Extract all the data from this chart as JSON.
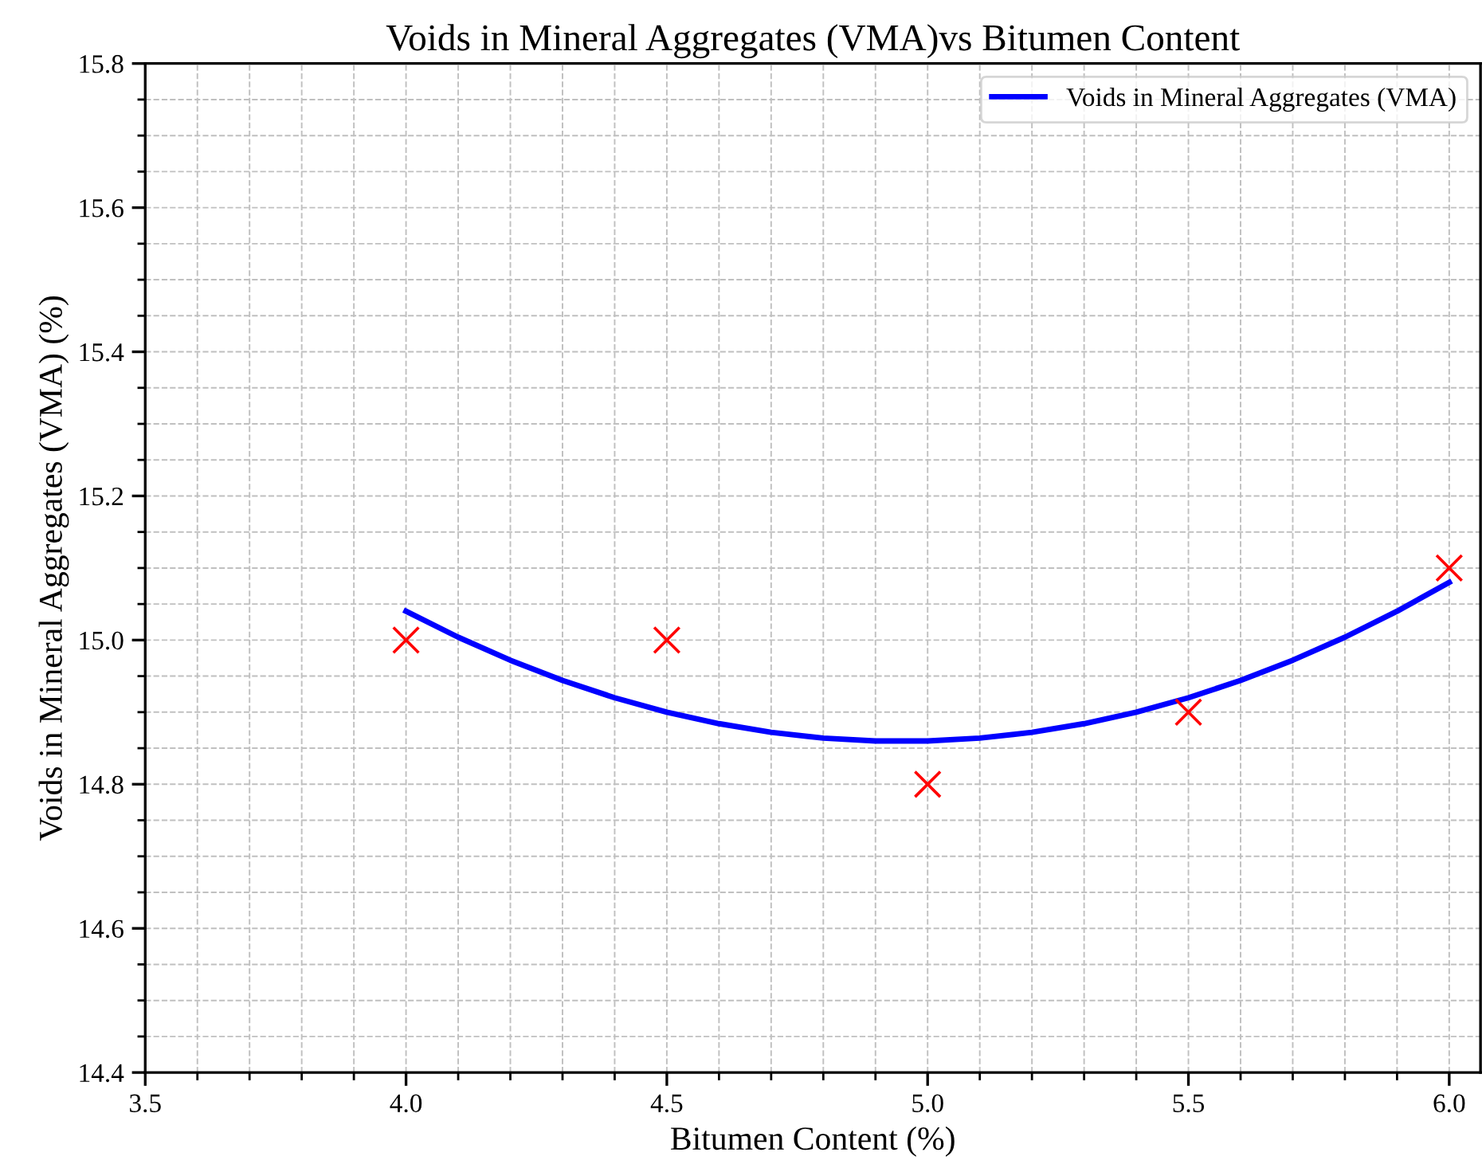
{
  "chart_data": {
    "type": "scatter",
    "title": "Voids in Mineral Aggregates (VMA)vs Bitumen Content",
    "xlabel": "Bitumen Content (%)",
    "ylabel": "Voids in Mineral Aggregates (VMA) (%)",
    "series": [
      {
        "color": "#ff0000",
        "marker": "cross",
        "x": [
          4.0,
          4.5,
          5.0,
          5.5,
          6.0
        ],
        "values": [
          15.0,
          15.0,
          14.8,
          14.9,
          15.1
        ]
      },
      {
        "type": "line",
        "name": "Voids in Mineral Aggregates (VMA)",
        "color": "#0000ff",
        "marker": "none",
        "line_style": "solid",
        "x": [
          4.0,
          4.1,
          4.2,
          4.3,
          4.4,
          4.5,
          4.6,
          4.7,
          4.8,
          4.9,
          5.0,
          5.1,
          5.2,
          5.3,
          5.4,
          5.5,
          5.6,
          5.7,
          5.8,
          5.9,
          6.0
        ],
        "values": [
          15.04,
          15.004,
          14.972,
          14.944,
          14.92,
          14.9,
          14.884,
          14.872,
          14.864,
          14.86,
          14.86,
          14.864,
          14.872,
          14.884,
          14.9,
          14.92,
          14.944,
          14.972,
          15.004,
          15.04,
          15.08
        ]
      }
    ],
    "xlim": [
      3.5,
      6.06
    ],
    "ylim": [
      14.4,
      15.8
    ],
    "xticks": [
      3.5,
      {
        "value": 3.6,
        "label": null
      },
      {
        "value": 3.7,
        "label": null
      },
      {
        "value": 3.8,
        "label": null
      },
      {
        "value": 3.9,
        "label": null
      },
      {
        "value": 4,
        "label": "4.0"
      },
      {
        "value": 4.1,
        "label": null
      },
      {
        "value": 4.2,
        "label": null
      },
      {
        "value": 4.3,
        "label": null
      },
      {
        "value": 4.4,
        "label": null
      },
      4.5,
      {
        "value": 4.6,
        "label": null
      },
      {
        "value": 4.7,
        "label": null
      },
      {
        "value": 4.8,
        "label": null
      },
      {
        "value": 4.9,
        "label": null
      },
      {
        "value": 5,
        "label": "5.0"
      },
      {
        "value": 5.1,
        "label": null
      },
      {
        "value": 5.2,
        "label": null
      },
      {
        "value": 5.3,
        "label": null
      },
      {
        "value": 5.4,
        "label": null
      },
      5.5,
      {
        "value": 5.6,
        "label": null
      },
      {
        "value": 5.7,
        "label": null
      },
      {
        "value": 5.8,
        "label": null
      },
      {
        "value": 5.9,
        "label": null
      },
      {
        "value": 6,
        "label": "6.0"
      }
    ],
    "yticks": [
      14.4,
      {
        "value": 14.45,
        "label": null
      },
      {
        "value": 14.5,
        "label": null
      },
      {
        "value": 14.55,
        "label": null
      },
      14.6,
      {
        "value": 14.65,
        "label": null
      },
      {
        "value": 14.7,
        "label": null
      },
      {
        "value": 14.75,
        "label": null
      },
      14.8,
      {
        "value": 14.85,
        "label": null
      },
      {
        "value": 14.9,
        "label": null
      },
      {
        "value": 14.95,
        "label": null
      },
      {
        "value": 15,
        "label": "15.0"
      },
      {
        "value": 15.05,
        "label": null
      },
      {
        "value": 15.1,
        "label": null
      },
      {
        "value": 15.15,
        "label": null
      },
      15.2,
      {
        "value": 15.25,
        "label": null
      },
      {
        "value": 15.3,
        "label": null
      },
      {
        "value": 15.35,
        "label": null
      },
      15.4,
      {
        "value": 15.45,
        "label": null
      },
      {
        "value": 15.5,
        "label": null
      },
      {
        "value": 15.55,
        "label": null
      },
      15.6,
      {
        "value": 15.65,
        "label": null
      },
      {
        "value": 15.7,
        "label": null
      },
      {
        "value": 15.75,
        "label": null
      },
      15.8
    ],
    "grid": true,
    "legend": "top right"
  }
}
